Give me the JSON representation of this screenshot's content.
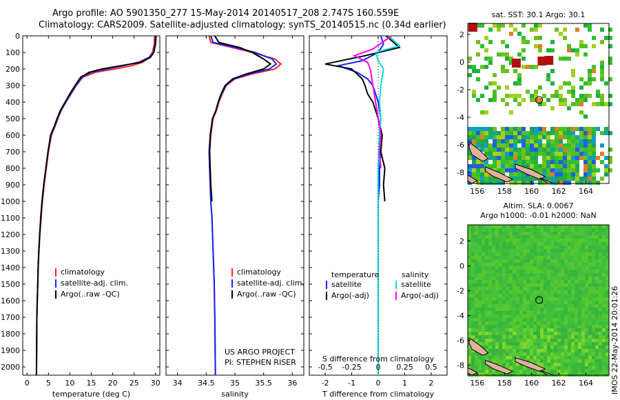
{
  "header": {
    "title_line1": "Argo profile: AO 5901350_277 15-May-2014 20140517_208 2.747S 160.559E",
    "title_line2": "Climatology: CARS2009. Satellite-adjusted climatology: synTS_20140515.nc (0.34d earlier)"
  },
  "timestamp": "IMOS 22-May-2014 20:01:26",
  "colors": {
    "climatology": "#ff2020",
    "satellite": "#1020ff",
    "argo": "#000000",
    "sal_satellite": "#00e0e0",
    "sal_argo": "#ff00ff"
  },
  "chart_data": [
    {
      "type": "line",
      "panel": "temperature",
      "xlabel": "temperature (deg C)",
      "ylabel": "",
      "xlim": [
        -1,
        31
      ],
      "ylim": [
        2050,
        0
      ],
      "xticks": [
        "0",
        "5",
        "10",
        "15",
        "20",
        "25",
        "30"
      ],
      "yticks": [
        "0",
        "100",
        "200",
        "300",
        "400",
        "500",
        "600",
        "700",
        "800",
        "900",
        "1000",
        "1100",
        "1200",
        "1300",
        "1400",
        "1500",
        "1600",
        "1700",
        "1800",
        "1900",
        "2000"
      ],
      "legend_position": "lower-left",
      "series": [
        {
          "name": "climatology",
          "role": "climatology",
          "x": [
            29.8,
            29.7,
            29.3,
            28.5,
            27.0,
            24.5,
            20.5,
            16.0,
            13.0,
            11.5,
            10.3,
            9.1,
            8.0,
            7.2,
            6.5,
            5.7,
            5.0,
            4.5,
            4.0,
            3.6,
            3.3,
            3.0,
            2.8,
            2.6,
            2.5,
            2.4,
            2.3,
            2.25,
            2.2
          ],
          "y": [
            0,
            50,
            100,
            130,
            160,
            180,
            200,
            220,
            250,
            300,
            350,
            400,
            450,
            500,
            550,
            600,
            700,
            800,
            900,
            1000,
            1100,
            1200,
            1300,
            1400,
            1500,
            1600,
            1700,
            1900,
            2050
          ]
        },
        {
          "name": "satellite-adj. clim.",
          "role": "satellite",
          "x": [
            30.0,
            29.9,
            29.5,
            28.5,
            26.0,
            22.5,
            18.5,
            15.0,
            12.8,
            11.4,
            10.2,
            9.0,
            7.9,
            7.1,
            6.4,
            5.6,
            4.9,
            4.4,
            3.9,
            3.5,
            3.2,
            2.95,
            2.75,
            2.6,
            2.5,
            2.4,
            2.3,
            2.25,
            2.2
          ],
          "y": [
            0,
            50,
            100,
            130,
            160,
            180,
            200,
            220,
            250,
            300,
            350,
            400,
            450,
            500,
            550,
            600,
            700,
            800,
            900,
            1000,
            1100,
            1200,
            1300,
            1400,
            1500,
            1600,
            1700,
            1900,
            2050
          ]
        },
        {
          "name": "Argo(..raw -QC)",
          "role": "argo",
          "x": [
            30.1,
            30.0,
            29.6,
            28.8,
            26.5,
            22.0,
            17.5,
            14.5,
            12.5,
            11.2,
            10.0,
            8.9,
            7.8,
            7.0,
            6.3,
            5.5,
            4.9,
            4.4,
            3.9,
            3.5,
            3.2,
            2.95,
            2.75,
            2.6,
            2.5,
            2.4,
            2.3,
            2.25,
            2.2
          ],
          "y": [
            0,
            50,
            100,
            130,
            160,
            180,
            200,
            220,
            250,
            300,
            350,
            400,
            450,
            500,
            550,
            600,
            700,
            800,
            900,
            1000,
            1100,
            1200,
            1300,
            1400,
            1500,
            1600,
            1700,
            1900,
            2050
          ]
        }
      ]
    },
    {
      "type": "line",
      "panel": "salinity",
      "xlabel": "salinity",
      "ylabel": "",
      "xlim": [
        33.8,
        36.2
      ],
      "ylim": [
        2050,
        0
      ],
      "xticks": [
        "34",
        "34.5",
        "35",
        "35.5",
        "36"
      ],
      "annotations": [
        "US ARGO PROJECT",
        "PI: STEPHEN RISER"
      ],
      "legend_position": "lower-right",
      "series": [
        {
          "name": "climatology",
          "role": "climatology",
          "x": [
            34.55,
            34.58,
            34.95,
            35.3,
            35.7,
            35.8,
            35.7,
            35.3,
            35.0,
            34.85,
            34.78,
            34.72,
            34.68,
            34.62,
            34.58,
            34.56,
            34.56,
            34.57,
            34.58,
            34.6,
            34.61,
            34.62,
            34.63,
            34.64,
            34.65,
            34.66
          ],
          "y": [
            0,
            40,
            70,
            100,
            140,
            170,
            200,
            230,
            260,
            300,
            350,
            400,
            450,
            500,
            600,
            700,
            800,
            900,
            1000,
            1100,
            1200,
            1300,
            1400,
            1500,
            1700,
            2050
          ]
        },
        {
          "name": "satellite-adj. clim.",
          "role": "satellite",
          "x": [
            34.58,
            34.62,
            35.0,
            35.35,
            35.65,
            35.72,
            35.6,
            35.25,
            34.98,
            34.84,
            34.77,
            34.71,
            34.67,
            34.61,
            34.57,
            34.55,
            34.56,
            34.57,
            34.58,
            34.6,
            34.61,
            34.62,
            34.63,
            34.64,
            34.65,
            34.66
          ],
          "y": [
            0,
            40,
            70,
            100,
            140,
            170,
            200,
            230,
            260,
            300,
            350,
            400,
            450,
            500,
            600,
            700,
            800,
            900,
            1000,
            1100,
            1200,
            1300,
            1400,
            1500,
            1700,
            2050
          ]
        },
        {
          "name": "Argo(..raw -QC)",
          "role": "argo",
          "x": [
            34.65,
            34.72,
            35.08,
            35.3,
            35.5,
            35.62,
            35.5,
            35.2,
            34.96,
            34.83,
            34.76,
            34.71,
            34.67,
            34.61,
            34.57,
            34.56,
            34.57,
            34.58,
            34.6
          ],
          "y": [
            0,
            40,
            70,
            100,
            140,
            170,
            200,
            230,
            260,
            300,
            350,
            400,
            450,
            500,
            600,
            700,
            800,
            900,
            1000
          ]
        }
      ]
    },
    {
      "type": "line",
      "panel": "difference",
      "xlabel": "T difference from climatology",
      "xlabel_top": "S difference from climatology",
      "xlim": [
        -2.6,
        2.6
      ],
      "ylim": [
        2050,
        0
      ],
      "xticks": [
        "-2",
        "-1",
        "0",
        "1",
        "2"
      ],
      "xticks_top": [
        "-0.5",
        "-0.25",
        "0",
        "0.25",
        "0.5"
      ],
      "legend_position": "lower",
      "legend_headers": [
        "temperature",
        "salinity"
      ],
      "series": [
        {
          "name": "satellite",
          "role": "satellite",
          "x": [
            0.1,
            0.2,
            0.0,
            -0.6,
            -1.5,
            -0.8,
            -0.4,
            -0.2,
            0.0,
            0.1,
            0.05,
            0.1,
            0.05,
            0.05,
            0.0,
            0.0,
            0.0,
            0.0,
            0.0
          ],
          "y": [
            0,
            50,
            100,
            150,
            180,
            220,
            260,
            300,
            400,
            500,
            600,
            700,
            800,
            900,
            1000,
            1200,
            1500,
            1800,
            2050
          ]
        },
        {
          "name": "Argo(-adj)",
          "role": "argo",
          "x": [
            0.3,
            0.8,
            -0.5,
            -2.0,
            -1.0,
            -0.6,
            -0.5,
            -0.4,
            -0.2,
            0.0,
            0.15,
            0.1,
            0.25,
            0.2,
            0.25
          ],
          "y": [
            0,
            70,
            120,
            170,
            200,
            260,
            300,
            350,
            400,
            500,
            600,
            700,
            800,
            900,
            1000
          ]
        },
        {
          "name": "satellite",
          "role": "sal_satellite",
          "x": [
            0.4,
            0.8,
            -0.1,
            0.0,
            0.2,
            0.1,
            0.05,
            0.1,
            0.05,
            0.0,
            0.0,
            0.0,
            0.0,
            0.0
          ],
          "y": [
            0,
            60,
            100,
            150,
            200,
            300,
            400,
            500,
            600,
            800,
            1000,
            1300,
            1700,
            2050
          ]
        },
        {
          "name": "Argo(-adj)",
          "role": "sal_argo",
          "x": [
            0.5,
            -0.2,
            -0.9,
            -0.4,
            -0.3,
            -0.2,
            -0.1,
            0.0,
            0.1,
            0.05,
            0.1
          ],
          "y": [
            0,
            80,
            120,
            160,
            200,
            300,
            400,
            500,
            600,
            700,
            800
          ]
        }
      ]
    },
    {
      "type": "heatmap",
      "panel": "sst_map",
      "title": "sat. SST: 30.1 Argo: 30.1",
      "xlim": [
        155.3,
        165.7
      ],
      "ylim": [
        -8.8,
        2.8
      ],
      "xticks": [
        "156",
        "158",
        "160",
        "162",
        "164"
      ],
      "yticks": [
        "2",
        "0",
        "-2",
        "-4",
        "-6",
        "-8"
      ],
      "marker": {
        "lon": 160.559,
        "lat": -2.747
      }
    },
    {
      "type": "heatmap",
      "panel": "sla_map",
      "title": "Altim. SLA: 0.0067",
      "subtitle": "Argo h1000: -0.01 h2000: NaN",
      "xlim": [
        155.3,
        165.7
      ],
      "ylim": [
        -8.8,
        3.3
      ],
      "xticks": [
        "156",
        "158",
        "160",
        "162",
        "164"
      ],
      "yticks": [
        "2",
        "0",
        "-2",
        "-4",
        "-6",
        "-8"
      ],
      "marker": {
        "lon": 160.559,
        "lat": -2.747
      }
    }
  ]
}
